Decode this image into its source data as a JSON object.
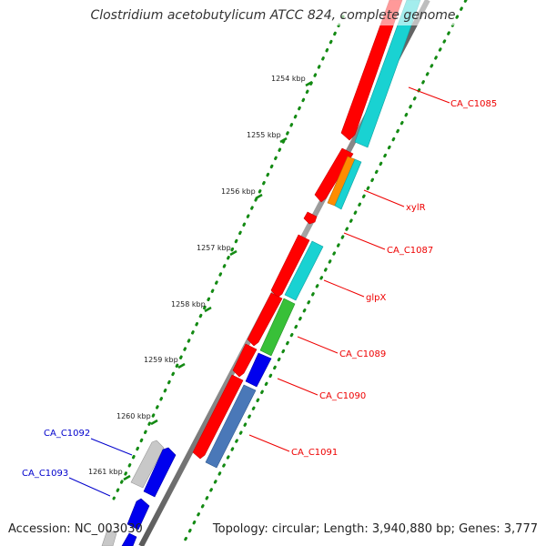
{
  "title": "Clostridium acetobutylicum ATCC 824, complete genome",
  "footer": {
    "accession": "Accession: NC_003030",
    "topology": "Topology: circular; Length: 3,940,880 bp; Genes: 3,777"
  },
  "colors": {
    "backbone": "#808080",
    "tick": "#138a13",
    "forward_gene": "#ff0000",
    "cyan_feature": "#19d2d2",
    "orange_feature": "#ff8c00",
    "green_feature": "#38c038",
    "blue_feature": "#0000ee",
    "steelblue_feature": "#4a78b8",
    "gray_feature": "#c8c8c8",
    "label_red": "#ee0000",
    "label_blue": "#0000cc"
  },
  "scale": [
    {
      "label": "1254 kbp",
      "kbp": 1254
    },
    {
      "label": "1255 kbp",
      "kbp": 1255
    },
    {
      "label": "1256 kbp",
      "kbp": 1256
    },
    {
      "label": "1257 kbp",
      "kbp": 1257
    },
    {
      "label": "1258 kbp",
      "kbp": 1258
    },
    {
      "label": "1259 kbp",
      "kbp": 1259
    },
    {
      "label": "1260 kbp",
      "kbp": 1260
    },
    {
      "label": "1261 kbp",
      "kbp": 1261
    }
  ],
  "gene_labels": [
    {
      "id": "CA_C1085",
      "label": "CA_C1085",
      "color": "#ee0000",
      "side": "right"
    },
    {
      "id": "xylR",
      "label": "xylR",
      "color": "#ee0000",
      "side": "right"
    },
    {
      "id": "CA_C1087",
      "label": "CA_C1087",
      "color": "#ee0000",
      "side": "right"
    },
    {
      "id": "glpX",
      "label": "glpX",
      "color": "#ee0000",
      "side": "right"
    },
    {
      "id": "CA_C1089",
      "label": "CA_C1089",
      "color": "#ee0000",
      "side": "right"
    },
    {
      "id": "CA_C1090",
      "label": "CA_C1090",
      "color": "#ee0000",
      "side": "right"
    },
    {
      "id": "CA_C1091",
      "label": "CA_C1091",
      "color": "#ee0000",
      "side": "right"
    },
    {
      "id": "CA_C1092",
      "label": "CA_C1092",
      "color": "#0000cc",
      "side": "left"
    },
    {
      "id": "CA_C1093",
      "label": "CA_C1093",
      "color": "#0000cc",
      "side": "left"
    }
  ]
}
